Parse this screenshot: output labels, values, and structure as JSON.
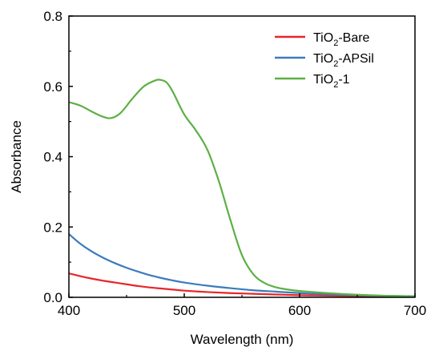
{
  "chart_data": {
    "type": "line",
    "xlabel": "Wavelength (nm)",
    "ylabel": "Absorbance",
    "xlim": [
      400,
      700
    ],
    "ylim": [
      0.0,
      0.8
    ],
    "xticks": [
      400,
      500,
      600,
      700
    ],
    "yticks": [
      0.0,
      0.2,
      0.4,
      0.6,
      0.8
    ],
    "xtick_labels": [
      "400",
      "500",
      "600",
      "700"
    ],
    "ytick_labels": [
      "0.0",
      "0.2",
      "0.4",
      "0.6",
      "0.8"
    ],
    "grid": false,
    "legend_position": "top-right",
    "series": [
      {
        "name": "TiO2-Bare",
        "legend_main": "TiO",
        "legend_sub": "2",
        "legend_suffix": "-Bare",
        "color": "#e8262a",
        "x": [
          400,
          410,
          420,
          430,
          440,
          450,
          460,
          470,
          480,
          490,
          500,
          520,
          540,
          560,
          580,
          600,
          620,
          640,
          660,
          680,
          700
        ],
        "y": [
          0.068,
          0.06,
          0.053,
          0.047,
          0.042,
          0.037,
          0.032,
          0.028,
          0.025,
          0.022,
          0.019,
          0.015,
          0.012,
          0.01,
          0.008,
          0.006,
          0.005,
          0.004,
          0.003,
          0.002,
          0.002
        ]
      },
      {
        "name": "TiO2-APSil",
        "legend_main": "TiO",
        "legend_sub": "2",
        "legend_suffix": "-APSil",
        "color": "#3b7bbd",
        "x": [
          400,
          410,
          420,
          430,
          440,
          450,
          460,
          470,
          480,
          490,
          500,
          520,
          540,
          560,
          580,
          600,
          620,
          640,
          660,
          680,
          700
        ],
        "y": [
          0.18,
          0.152,
          0.13,
          0.112,
          0.097,
          0.084,
          0.073,
          0.063,
          0.055,
          0.048,
          0.042,
          0.033,
          0.026,
          0.02,
          0.016,
          0.012,
          0.009,
          0.007,
          0.005,
          0.004,
          0.003
        ]
      },
      {
        "name": "TiO2-1",
        "legend_main": "TiO",
        "legend_sub": "2",
        "legend_suffix": "-1",
        "color": "#5cb043",
        "x": [
          400,
          410,
          420,
          430,
          437,
          445,
          455,
          465,
          475,
          480,
          485,
          490,
          500,
          510,
          520,
          530,
          540,
          550,
          560,
          570,
          580,
          590,
          600,
          620,
          640,
          660,
          680,
          700
        ],
        "y": [
          0.555,
          0.545,
          0.528,
          0.513,
          0.51,
          0.525,
          0.565,
          0.6,
          0.617,
          0.618,
          0.61,
          0.585,
          0.52,
          0.475,
          0.42,
          0.33,
          0.22,
          0.12,
          0.065,
          0.04,
          0.028,
          0.022,
          0.018,
          0.013,
          0.009,
          0.006,
          0.004,
          0.002
        ]
      }
    ]
  }
}
